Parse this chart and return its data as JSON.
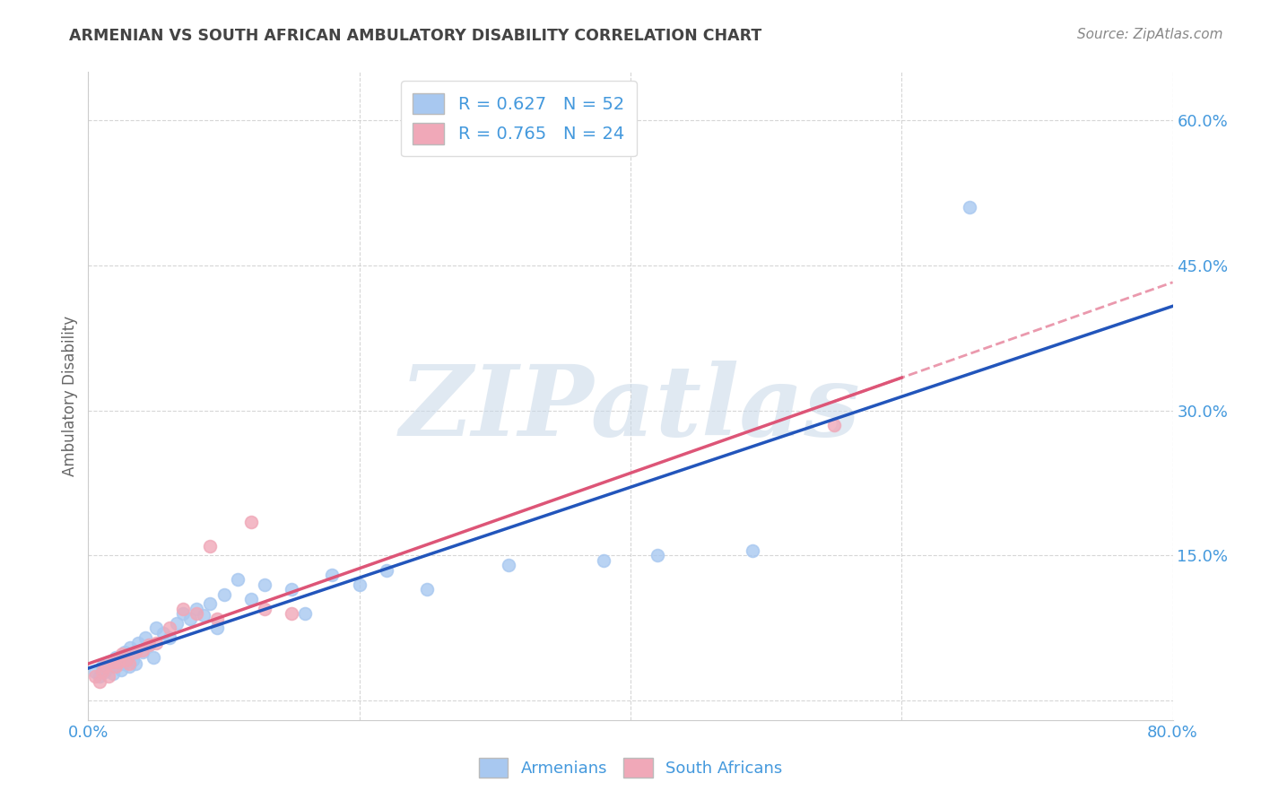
{
  "title": "ARMENIAN VS SOUTH AFRICAN AMBULATORY DISABILITY CORRELATION CHART",
  "source": "Source: ZipAtlas.com",
  "ylabel": "Ambulatory Disability",
  "xlim": [
    0.0,
    0.8
  ],
  "ylim": [
    -0.02,
    0.65
  ],
  "xticks": [
    0.0,
    0.2,
    0.4,
    0.6,
    0.8
  ],
  "xticklabels": [
    "0.0%",
    "",
    "",
    "",
    "80.0%"
  ],
  "ytick_positions": [
    0.0,
    0.15,
    0.3,
    0.45,
    0.6
  ],
  "ytick_labels": [
    "",
    "15.0%",
    "30.0%",
    "45.0%",
    "60.0%"
  ],
  "armenian_R": 0.627,
  "armenian_N": 52,
  "sa_R": 0.765,
  "sa_N": 24,
  "armenian_color": "#a8c8f0",
  "armenian_line_color": "#2255bb",
  "sa_color": "#f0a8b8",
  "sa_line_color": "#dd5577",
  "watermark_text": "ZIPatlas",
  "background_color": "#ffffff",
  "grid_color": "#cccccc",
  "title_color": "#444444",
  "axis_label_color": "#4499dd",
  "armenian_x": [
    0.005,
    0.008,
    0.01,
    0.012,
    0.015,
    0.016,
    0.018,
    0.019,
    0.02,
    0.021,
    0.022,
    0.023,
    0.024,
    0.025,
    0.026,
    0.027,
    0.028,
    0.03,
    0.031,
    0.032,
    0.033,
    0.035,
    0.037,
    0.04,
    0.042,
    0.045,
    0.048,
    0.05,
    0.055,
    0.06,
    0.065,
    0.07,
    0.075,
    0.08,
    0.085,
    0.09,
    0.095,
    0.1,
    0.11,
    0.12,
    0.13,
    0.15,
    0.16,
    0.18,
    0.2,
    0.22,
    0.25,
    0.31,
    0.38,
    0.42,
    0.49,
    0.65
  ],
  "armenian_y": [
    0.03,
    0.025,
    0.035,
    0.03,
    0.04,
    0.035,
    0.028,
    0.04,
    0.045,
    0.038,
    0.042,
    0.038,
    0.032,
    0.045,
    0.038,
    0.05,
    0.042,
    0.035,
    0.055,
    0.048,
    0.042,
    0.038,
    0.06,
    0.05,
    0.065,
    0.058,
    0.045,
    0.075,
    0.07,
    0.065,
    0.08,
    0.09,
    0.085,
    0.095,
    0.088,
    0.1,
    0.075,
    0.11,
    0.125,
    0.105,
    0.12,
    0.115,
    0.09,
    0.13,
    0.12,
    0.135,
    0.115,
    0.14,
    0.145,
    0.15,
    0.155,
    0.51
  ],
  "sa_x": [
    0.005,
    0.008,
    0.01,
    0.012,
    0.015,
    0.018,
    0.02,
    0.022,
    0.025,
    0.028,
    0.03,
    0.035,
    0.04,
    0.045,
    0.05,
    0.06,
    0.07,
    0.08,
    0.09,
    0.095,
    0.12,
    0.13,
    0.15,
    0.55
  ],
  "sa_y": [
    0.025,
    0.02,
    0.03,
    0.035,
    0.025,
    0.04,
    0.035,
    0.04,
    0.048,
    0.042,
    0.038,
    0.05,
    0.052,
    0.058,
    0.06,
    0.075,
    0.095,
    0.09,
    0.16,
    0.085,
    0.185,
    0.095,
    0.09,
    0.285
  ]
}
